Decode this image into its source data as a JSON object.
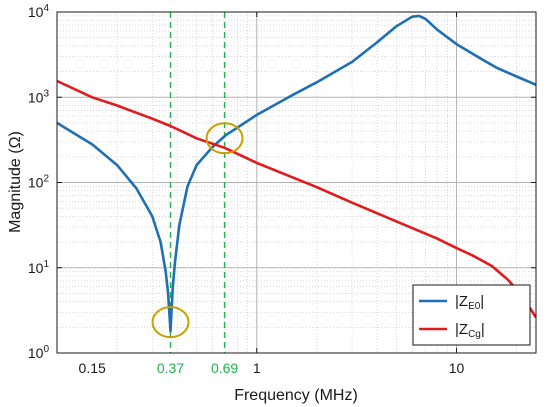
{
  "chart_data": {
    "type": "line",
    "xlabel": "Frequency (MHz)",
    "ylabel": "Magnitude (Ω)",
    "x_scale": "log",
    "y_scale": "log",
    "xlim": [
      0.1,
      25
    ],
    "ylim": [
      1,
      10000
    ],
    "grid": true,
    "x_ticks": [
      {
        "value": 0.15,
        "label": "0.15"
      },
      {
        "value": 1,
        "label": "1"
      },
      {
        "value": 10,
        "label": "10"
      }
    ],
    "y_ticks": [
      {
        "value": 1,
        "base": "10",
        "exp": "0"
      },
      {
        "value": 10,
        "base": "10",
        "exp": "1"
      },
      {
        "value": 100,
        "base": "10",
        "exp": "2"
      },
      {
        "value": 1000,
        "base": "10",
        "exp": "3"
      },
      {
        "value": 10000,
        "base": "10",
        "exp": "4"
      }
    ],
    "markers": [
      {
        "x": 0.37,
        "label": "0.37"
      },
      {
        "x": 0.69,
        "label": "0.69"
      }
    ],
    "highlights": [
      {
        "x": 0.37,
        "y": 2.3
      },
      {
        "x": 0.69,
        "y": 330
      }
    ],
    "legend_position": "bottom-right",
    "series": [
      {
        "name": "|Z",
        "subscript": "E0",
        "suffix": "|",
        "color": "#1f6fb4",
        "x": [
          0.1,
          0.15,
          0.2,
          0.25,
          0.3,
          0.33,
          0.35,
          0.36,
          0.37,
          0.38,
          0.39,
          0.41,
          0.45,
          0.5,
          0.6,
          0.7,
          0.8,
          1.0,
          1.5,
          2.0,
          3.0,
          4.0,
          5.0,
          6.0,
          6.5,
          7.0,
          8.0,
          10.0,
          13.0,
          16.0,
          20.0,
          25.0
        ],
        "y": [
          500,
          280,
          160,
          85,
          40,
          20,
          9,
          5,
          1.8,
          6,
          12,
          32,
          90,
          160,
          260,
          360,
          440,
          620,
          1050,
          1500,
          2600,
          4400,
          6800,
          8800,
          9000,
          8300,
          6200,
          4200,
          2900,
          2200,
          1750,
          1400
        ]
      },
      {
        "name": "|Z",
        "subscript": "Cg",
        "suffix": "|",
        "color": "#e31a1c",
        "x": [
          0.1,
          0.15,
          0.2,
          0.3,
          0.37,
          0.5,
          0.69,
          1.0,
          2.0,
          3.0,
          5.0,
          8.0,
          10.0,
          12.0,
          15.0,
          18.0,
          20.0,
          22.0,
          25.0
        ],
        "y": [
          1550,
          1000,
          800,
          560,
          460,
          330,
          255,
          170,
          88,
          58,
          35,
          22,
          17,
          14,
          10.5,
          7.3,
          5.6,
          4.2,
          2.6
        ]
      }
    ]
  }
}
